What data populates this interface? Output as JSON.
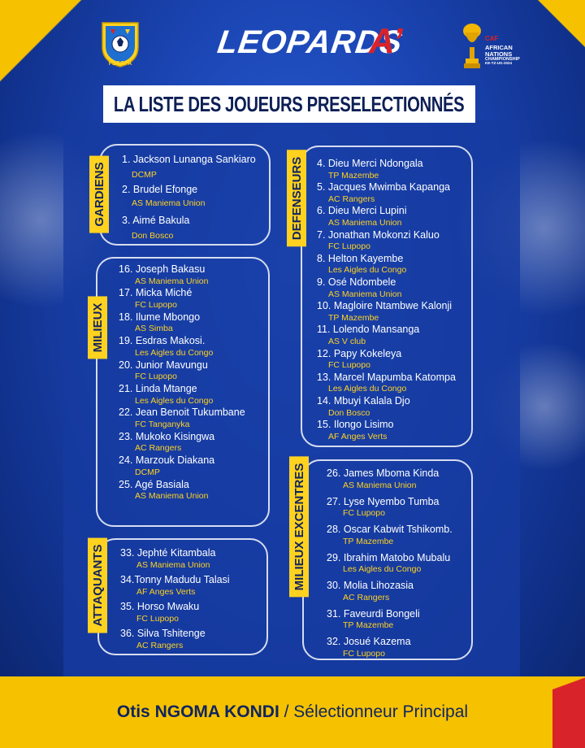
{
  "header": {
    "fecofa_label": "FECOFA",
    "title": "LEOPARDS",
    "title_suffix": "A’",
    "caf": {
      "line1": "CAF",
      "line2": "AFRICAN",
      "line3": "NATIONS",
      "line4": "CHAMPIONSHIP",
      "line5": "KE-TZ-UG-2024"
    },
    "banner": "LA LISTE DES JOUEURS PRESELECTIONNÉS"
  },
  "colors": {
    "background": "#1b45b3",
    "accent_yellow": "#ffd21f",
    "accent_red": "#d8232a",
    "text_white": "#ffffff"
  },
  "groups": {
    "gardiens": {
      "label": "GARDIENS",
      "players": [
        {
          "name": "1. Jackson Lunanga Sankiaro",
          "club": "DCMP"
        },
        {
          "name": "2. Brudel Efonge",
          "club": "AS Maniema Union"
        },
        {
          "name": "3. Aimé Bakula",
          "club": "Don Bosco"
        }
      ]
    },
    "defenseurs": {
      "label": "DEFENSEURS",
      "players": [
        {
          "name": "4. Dieu Merci Ndongala",
          "club": "TP Mazembe"
        },
        {
          "name": "5. Jacques Mwimba Kapanga",
          "club": "AC Rangers"
        },
        {
          "name": "6. Dieu Merci Lupini",
          "club": "AS Maniema Union"
        },
        {
          "name": "7. Jonathan Mokonzi Kaluo",
          "club": "FC Lupopo"
        },
        {
          "name": "8. Helton Kayembe",
          "club": "Les Aigles du Congo"
        },
        {
          "name": "9. Osé Ndombele",
          "club": "AS Maniema Union"
        },
        {
          "name": "10. Magloire Ntambwe Kalonji",
          "club": "TP Mazembe"
        },
        {
          "name": "11. Lolendo Mansanga",
          "club": "AS V club"
        },
        {
          "name": "12. Papy Kokeleya",
          "club": "FC Lupopo"
        },
        {
          "name": "13. Marcel Mapumba Katompa",
          "club": "Les Aigles du Congo"
        },
        {
          "name": "14. Mbuyi Kalala Djo",
          "club": "Don Bosco"
        },
        {
          "name": "15. Ilongo Lisimo",
          "club": "AF Anges Verts"
        }
      ]
    },
    "milieux": {
      "label": "MILIEUX",
      "players": [
        {
          "name": "16. Joseph Bakasu",
          "club": "AS Maniema Union"
        },
        {
          "name": "17. Micka Miché",
          "club": "FC Lupopo"
        },
        {
          "name": "18. Ilume Mbongo",
          "club": "AS Simba"
        },
        {
          "name": "19. Esdras Makosi.",
          "club": "Les Aigles du Congo"
        },
        {
          "name": "20. Junior Mavungu",
          "club": "FC Lupopo"
        },
        {
          "name": "21. Linda Mtange",
          "club": "Les Aigles du Congo"
        },
        {
          "name": "22. Jean Benoit Tukumbane",
          "club": "FC Tanganyka"
        },
        {
          "name": "23. Mukoko Kisingwa",
          "club": "AC Rangers"
        },
        {
          "name": "24. Marzouk Diakana",
          "club": "DCMP"
        },
        {
          "name": "25. Agé Basiala",
          "club": "AS Maniema Union"
        }
      ]
    },
    "milieux_excentres": {
      "label": "MILIEUX EXCENTRES",
      "players": [
        {
          "name": "26. James Mboma Kinda",
          "club": "AS Maniema Union"
        },
        {
          "name": "27. Lyse Nyembo Tumba",
          "club": "FC Lupopo"
        },
        {
          "name": "28. Oscar Kabwit Tshikomb.",
          "club": "TP Mazembe"
        },
        {
          "name": "29. Ibrahim Matobo Mubalu",
          "club": "Les Aigles du Congo"
        },
        {
          "name": "30. Molia Lihozasia",
          "club": "AC Rangers"
        },
        {
          "name": "31. Faveurdi Bongeli",
          "club": "TP Mazembe"
        },
        {
          "name": "32. Josué Kazema",
          "club": "FC Lupopo"
        }
      ]
    },
    "attaquants": {
      "label": "ATTAQUANTS",
      "players": [
        {
          "name": "33. Jephté Kitambala",
          "club": "AS Maniema Union"
        },
        {
          "name": "34.Tonny Madudu Talasi",
          "club": "AF Anges Verts"
        },
        {
          "name": "35. Horso Mwaku",
          "club": "FC Lupopo"
        },
        {
          "name": "36. Silva Tshitenge",
          "club": "AC Rangers"
        }
      ]
    }
  },
  "footer": {
    "coach_name": "Otis NGOMA KONDI",
    "separator": " / ",
    "role": "Sélectionneur Principal"
  }
}
